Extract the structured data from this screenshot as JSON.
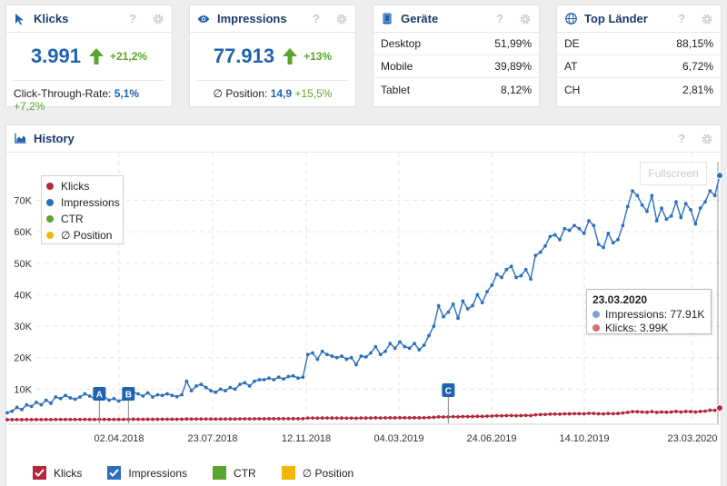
{
  "cards": {
    "klicks": {
      "title": "Klicks",
      "value": "3.991",
      "delta": "+21,2%",
      "sub_label": "Click-Through-Rate:",
      "sub_value": "5,1%",
      "sub_delta": "+7,2%"
    },
    "impressions": {
      "title": "Impressions",
      "value": "77.913",
      "delta": "+13%",
      "sub_label": "∅ Position:",
      "sub_value": "14,9",
      "sub_delta": "+15,5%"
    },
    "geraete": {
      "title": "Geräte",
      "rows": [
        {
          "label": "Desktop",
          "value": "51,99%"
        },
        {
          "label": "Mobile",
          "value": "39,89%"
        },
        {
          "label": "Tablet",
          "value": "8,12%"
        }
      ]
    },
    "laender": {
      "title": "Top Länder",
      "rows": [
        {
          "label": "DE",
          "value": "88,15%"
        },
        {
          "label": "AT",
          "value": "6,72%"
        },
        {
          "label": "CH",
          "value": "2,81%"
        }
      ]
    },
    "help_label": "?"
  },
  "history": {
    "title": "History",
    "fullscreen_label": "Fullscreen",
    "legend": [
      {
        "label": "Klicks",
        "color": "#b5283b"
      },
      {
        "label": "Impressions",
        "color": "#2c6fbd"
      },
      {
        "label": "CTR",
        "color": "#5aa52b"
      },
      {
        "label": "∅ Position",
        "color": "#f2b705"
      }
    ],
    "tooltip": {
      "date": "23.03.2020",
      "impressions": "Impressions: 77.91K",
      "klicks": "Klicks: 3.99K"
    },
    "bottom_legend": [
      {
        "label": "Klicks",
        "color": "#b5283b",
        "checked": true
      },
      {
        "label": "Impressions",
        "color": "#2c6fbd",
        "checked": true
      },
      {
        "label": "CTR",
        "color": "#5aa52b",
        "checked": false
      },
      {
        "label": "∅ Position",
        "color": "#f2b705",
        "checked": false
      }
    ]
  },
  "chart_data": {
    "type": "line",
    "y_ticks": [
      "10K",
      "20K",
      "30K",
      "40K",
      "50K",
      "60K",
      "70K"
    ],
    "x_ticks": [
      "02.04.2018",
      "23.07.2018",
      "12.11.2018",
      "04.03.2019",
      "24.06.2019",
      "14.10.2019",
      "23.03.2020"
    ],
    "ylim": [
      0,
      80000
    ],
    "markers": [
      {
        "label": "A",
        "x_index": 19
      },
      {
        "label": "B",
        "x_index": 25
      },
      {
        "label": "C",
        "x_index": 91
      }
    ],
    "series": [
      {
        "name": "Impressions",
        "color": "#2c6fbd",
        "values": [
          2500,
          3000,
          4200,
          3500,
          5000,
          4500,
          5800,
          5000,
          6500,
          5500,
          7500,
          7000,
          8000,
          7200,
          6800,
          7500,
          8500,
          7800,
          7000,
          8200,
          7500,
          6500,
          7000,
          6200,
          6800,
          7500,
          9000,
          8500,
          7800,
          8800,
          7500,
          8200,
          8000,
          8500,
          8000,
          7600,
          8200,
          12500,
          9500,
          11000,
          11500,
          10500,
          9500,
          9000,
          10000,
          9500,
          10500,
          10000,
          11500,
          12000,
          11000,
          12500,
          13000,
          13000,
          13500,
          13000,
          13800,
          13200,
          14000,
          14200,
          13500,
          13800,
          21000,
          21500,
          19500,
          22000,
          21000,
          20500,
          20000,
          20500,
          19500,
          20000,
          17800,
          20500,
          20200,
          21500,
          23500,
          21000,
          22000,
          24500,
          23000,
          25000,
          23500,
          23000,
          24500,
          22500,
          24000,
          27000,
          30000,
          36500,
          33000,
          34500,
          37000,
          32500,
          38000,
          35500,
          36500,
          40000,
          37500,
          41000,
          43000,
          46500,
          45500,
          48000,
          49000,
          45500,
          46000,
          48000,
          45000,
          52500,
          53500,
          55500,
          58500,
          59000,
          57500,
          61000,
          60500,
          62000,
          61000,
          59500,
          63500,
          62000,
          56000,
          55000,
          59500,
          56500,
          57500,
          62000,
          68000,
          73000,
          71500,
          68500,
          66500,
          71500,
          63500,
          67500,
          64000,
          65000,
          69500,
          64500,
          69000,
          67000,
          62500,
          67500,
          69500,
          73000,
          71500,
          77913
        ]
      },
      {
        "name": "Klicks",
        "color": "#b5283b",
        "values": [
          300,
          300,
          320,
          300,
          330,
          310,
          340,
          320,
          350,
          330,
          360,
          350,
          370,
          360,
          350,
          360,
          380,
          370,
          360,
          390,
          380,
          360,
          370,
          360,
          380,
          400,
          420,
          410,
          400,
          420,
          410,
          420,
          430,
          440,
          430,
          420,
          440,
          520,
          480,
          500,
          510,
          500,
          490,
          480,
          500,
          500,
          520,
          510,
          540,
          550,
          540,
          560,
          580,
          580,
          600,
          590,
          610,
          600,
          620,
          630,
          620,
          630,
          800,
          820,
          780,
          840,
          820,
          810,
          800,
          810,
          790,
          800,
          760,
          820,
          810,
          840,
          880,
          840,
          860,
          900,
          880,
          920,
          900,
          890,
          920,
          880,
          910,
          980,
          1050,
          1180,
          1150,
          1180,
          1250,
          1200,
          1300,
          1260,
          1280,
          1350,
          1320,
          1400,
          1450,
          1550,
          1520,
          1580,
          1620,
          1560,
          1580,
          1650,
          1600,
          1850,
          1900,
          1950,
          2050,
          2080,
          2050,
          2150,
          2140,
          2200,
          2180,
          2150,
          2300,
          2280,
          2150,
          2120,
          2250,
          2200,
          2250,
          2400,
          2600,
          2850,
          2800,
          2700,
          2650,
          2850,
          2600,
          2750,
          2650,
          2700,
          2900,
          2700,
          2900,
          2850,
          2700,
          2900,
          3000,
          3300,
          3250,
          3991
        ]
      }
    ]
  }
}
